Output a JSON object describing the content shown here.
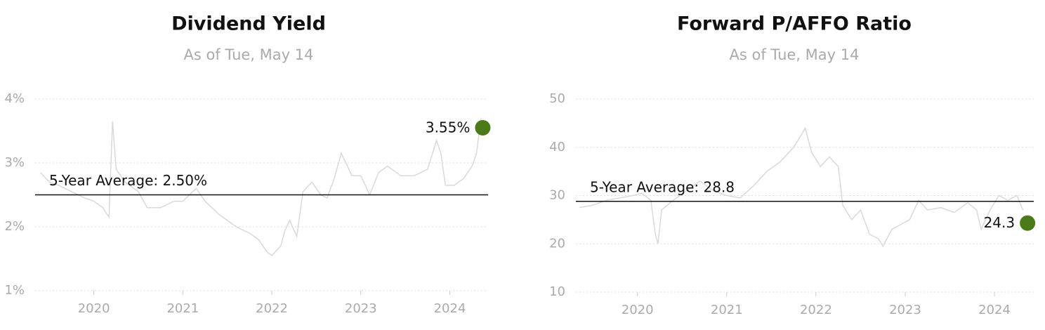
{
  "chart_data": [
    {
      "type": "line",
      "title": "Dividend Yield",
      "subtitle": "As of Tue, May 14",
      "x": [
        2019.4,
        2019.5,
        2019.6,
        2019.75,
        2019.9,
        2020.0,
        2020.1,
        2020.17,
        2020.21,
        2020.25,
        2020.35,
        2020.5,
        2020.6,
        2020.75,
        2020.9,
        2021.0,
        2021.15,
        2021.25,
        2021.4,
        2021.5,
        2021.6,
        2021.75,
        2021.85,
        2021.95,
        2022.0,
        2022.1,
        2022.15,
        2022.2,
        2022.28,
        2022.35,
        2022.45,
        2022.55,
        2022.62,
        2022.7,
        2022.78,
        2022.9,
        2023.0,
        2023.1,
        2023.2,
        2023.3,
        2023.45,
        2023.6,
        2023.75,
        2023.85,
        2023.9,
        2023.95,
        2024.05,
        2024.15,
        2024.25,
        2024.3,
        2024.35
      ],
      "series": [
        {
          "color": "#d9d9d9",
          "values": [
            2.85,
            2.7,
            2.65,
            2.55,
            2.45,
            2.4,
            2.3,
            2.15,
            3.65,
            2.9,
            2.7,
            2.55,
            2.3,
            2.3,
            2.4,
            2.4,
            2.6,
            2.4,
            2.2,
            2.1,
            2.0,
            1.9,
            1.8,
            1.6,
            1.55,
            1.7,
            1.95,
            2.1,
            1.85,
            2.55,
            2.7,
            2.5,
            2.45,
            2.75,
            3.15,
            2.8,
            2.8,
            2.5,
            2.85,
            2.95,
            2.8,
            2.8,
            2.9,
            3.35,
            3.15,
            2.65,
            2.65,
            2.75,
            2.95,
            3.15,
            3.7
          ]
        }
      ],
      "average": {
        "value": 2.5,
        "label": "5-Year Average: 2.50%"
      },
      "latest": {
        "x": 2024.37,
        "value": 3.55,
        "label": "3.55%",
        "color": "#4b7a1a"
      },
      "xlim": [
        2019.34,
        2024.43
      ],
      "xticks": [
        2020,
        2021,
        2022,
        2023,
        2024
      ],
      "ylim": [
        1,
        4
      ],
      "yticks": [
        {
          "value": 1,
          "label": "1%"
        },
        {
          "value": 2,
          "label": "2%"
        },
        {
          "value": 3,
          "label": "3%"
        },
        {
          "value": 4,
          "label": "4%"
        }
      ],
      "grid": true
    },
    {
      "type": "line",
      "title": "Forward P/AFFO Ratio",
      "subtitle": "As of Tue, May 14",
      "x": [
        2019.35,
        2019.5,
        2019.65,
        2019.8,
        2019.95,
        2020.05,
        2020.15,
        2020.2,
        2020.23,
        2020.27,
        2020.4,
        2020.55,
        2020.7,
        2020.85,
        2021.0,
        2021.15,
        2021.3,
        2021.45,
        2021.6,
        2021.75,
        2021.85,
        2021.88,
        2021.95,
        2022.05,
        2022.15,
        2022.25,
        2022.3,
        2022.4,
        2022.5,
        2022.6,
        2022.7,
        2022.75,
        2022.85,
        2022.95,
        2023.05,
        2023.15,
        2023.25,
        2023.4,
        2023.55,
        2023.7,
        2023.8,
        2023.85,
        2023.95,
        2024.05,
        2024.15,
        2024.25,
        2024.32
      ],
      "series": [
        {
          "color": "#d9d9d9",
          "values": [
            27.5,
            28,
            29,
            29.5,
            30,
            30.5,
            29,
            22,
            20,
            27,
            29,
            31,
            33,
            31,
            30,
            29.5,
            32,
            35,
            37,
            40,
            43,
            44,
            39,
            36,
            38,
            36,
            28,
            25,
            27,
            22,
            21,
            19.5,
            23,
            24,
            25,
            29,
            27,
            27.5,
            26.5,
            28.5,
            27,
            23,
            27,
            30,
            29,
            30,
            27
          ]
        }
      ],
      "average": {
        "value": 28.8,
        "label": "5-Year Average: 28.8"
      },
      "latest": {
        "x": 2024.37,
        "value": 24.3,
        "label": "24.3",
        "color": "#4b7a1a"
      },
      "xlim": [
        2019.31,
        2024.44
      ],
      "xticks": [
        2020,
        2021,
        2022,
        2023,
        2024
      ],
      "ylim": [
        10,
        50
      ],
      "yticks": [
        10,
        20,
        30,
        40,
        50
      ],
      "grid": true
    }
  ]
}
